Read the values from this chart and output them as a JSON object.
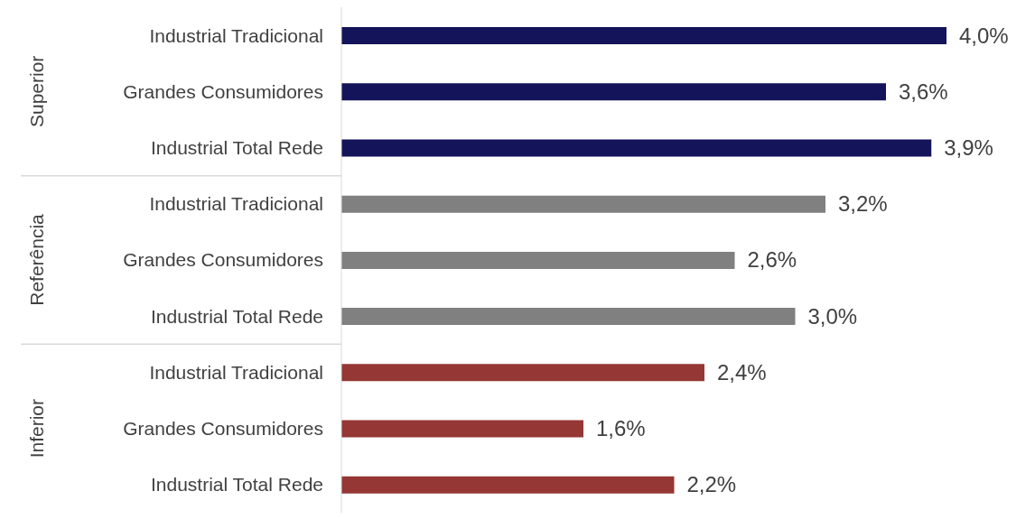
{
  "chart_data": {
    "type": "bar",
    "orientation": "horizontal",
    "categories": [
      "Industrial Tradicional",
      "Grandes Consumidores",
      "Industrial Total Rede",
      "Industrial Tradicional",
      "Grandes Consumidores",
      "Industrial Total Rede",
      "Industrial Tradicional",
      "Grandes Consumidores",
      "Industrial Total Rede"
    ],
    "values": [
      4.0,
      3.6,
      3.9,
      3.2,
      2.6,
      3.0,
      2.4,
      1.6,
      2.2
    ],
    "value_labels": [
      "4,0%",
      "3,6%",
      "3,9%",
      "3,2%",
      "2,6%",
      "3,0%",
      "2,4%",
      "1,6%",
      "2,2%"
    ],
    "colors": [
      "#14145a",
      "#14145a",
      "#14145a",
      "#808080",
      "#808080",
      "#808080",
      "#953735",
      "#953735",
      "#953735"
    ],
    "annotations": [
      "Superior",
      "Referência",
      "Inferior"
    ]
  }
}
